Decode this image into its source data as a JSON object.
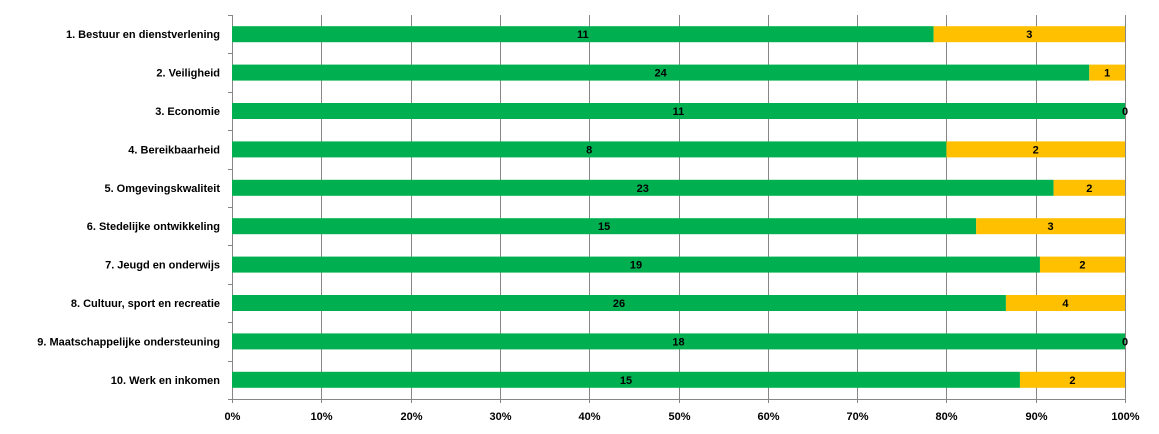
{
  "chart_data": {
    "type": "bar",
    "orientation": "horizontal",
    "stacked": "percent",
    "title": "",
    "xlabel": "",
    "ylabel": "",
    "grid": true,
    "legend": "none",
    "xlim": [
      0,
      100
    ],
    "x_ticks": [
      "0%",
      "10%",
      "20%",
      "30%",
      "40%",
      "50%",
      "60%",
      "70%",
      "80%",
      "90%",
      "100%"
    ],
    "categories": [
      "1. Bestuur en dienstverlening",
      "2. Veiligheid",
      "3. Economie",
      "4. Bereikbaarheid",
      "5. Omgevingskwaliteit",
      "6. Stedelijke ontwikkeling",
      "7. Jeugd en onderwijs",
      "8. Cultuur, sport en recreatie",
      "9. Maatschappelijke ondersteuning",
      "10. Werk en inkomen"
    ],
    "series": [
      {
        "color": "#00B050",
        "values": [
          11,
          24,
          11,
          8,
          23,
          15,
          19,
          26,
          18,
          15
        ]
      },
      {
        "color": "#FFC000",
        "values": [
          3,
          1,
          0,
          2,
          2,
          3,
          2,
          4,
          0,
          2
        ]
      }
    ]
  }
}
